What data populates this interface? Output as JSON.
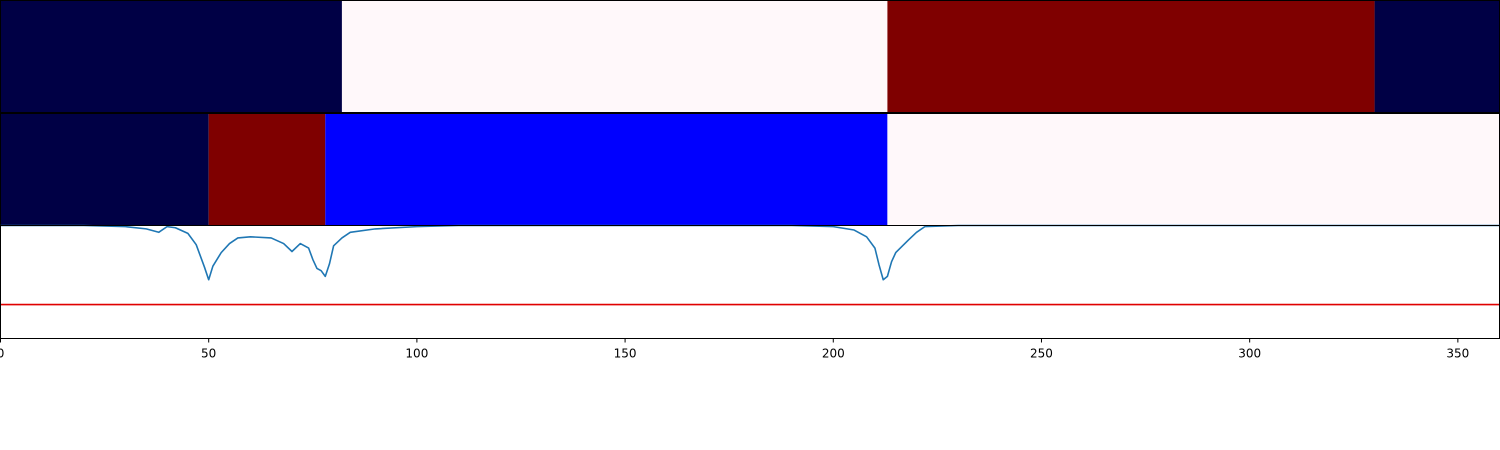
{
  "chart_data": [
    {
      "type": "heatmap",
      "panel": "top-band",
      "xlim": [
        0,
        360
      ],
      "segments": [
        {
          "start": 0,
          "end": 82,
          "color": "#000045"
        },
        {
          "start": 82,
          "end": 213,
          "color": "#FFF8FA"
        },
        {
          "start": 213,
          "end": 330,
          "color": "#7F0000"
        },
        {
          "start": 330,
          "end": 360,
          "color": "#000045"
        }
      ],
      "legend": "none"
    },
    {
      "type": "heatmap",
      "panel": "middle-band",
      "xlim": [
        0,
        360
      ],
      "segments": [
        {
          "start": 0,
          "end": 50,
          "color": "#000045"
        },
        {
          "start": 50,
          "end": 78,
          "color": "#7F0000"
        },
        {
          "start": 78,
          "end": 213,
          "color": "#0000FF"
        },
        {
          "start": 213,
          "end": 360,
          "color": "#FFF8FA"
        }
      ],
      "legend": "none"
    },
    {
      "type": "line",
      "panel": "signal",
      "xlim": [
        0,
        360
      ],
      "ylim": [
        0,
        1
      ],
      "grid": false,
      "xticks": [
        "0",
        "50",
        "100",
        "150",
        "200",
        "250",
        "300",
        "350"
      ],
      "xtick_values": [
        0,
        50,
        100,
        150,
        200,
        250,
        300,
        350
      ],
      "series": [
        {
          "color": "#1F77B4",
          "x": [
            0,
            20,
            30,
            35,
            38,
            40,
            42,
            45,
            47,
            49,
            50,
            51,
            53,
            55,
            57,
            60,
            65,
            68,
            70,
            72,
            74,
            75,
            76,
            77,
            78,
            79,
            80,
            82,
            84,
            90,
            100,
            110,
            130,
            160,
            190,
            200,
            205,
            208,
            210,
            211,
            212,
            213,
            214,
            215,
            218,
            220,
            222,
            230,
            260,
            300,
            360
          ],
          "y": [
            1.0,
            1.0,
            0.99,
            0.97,
            0.94,
            0.99,
            0.98,
            0.93,
            0.83,
            0.63,
            0.52,
            0.64,
            0.76,
            0.84,
            0.89,
            0.9,
            0.89,
            0.84,
            0.77,
            0.84,
            0.8,
            0.7,
            0.62,
            0.6,
            0.55,
            0.66,
            0.82,
            0.89,
            0.94,
            0.97,
            0.99,
            1.0,
            1.0,
            1.0,
            1.0,
            0.99,
            0.96,
            0.9,
            0.8,
            0.65,
            0.52,
            0.55,
            0.68,
            0.76,
            0.87,
            0.94,
            0.99,
            1.0,
            1.0,
            1.0,
            1.0
          ]
        },
        {
          "color": "#E00000",
          "x": [
            0,
            360
          ],
          "y": [
            0.3,
            0.3
          ]
        }
      ]
    }
  ]
}
